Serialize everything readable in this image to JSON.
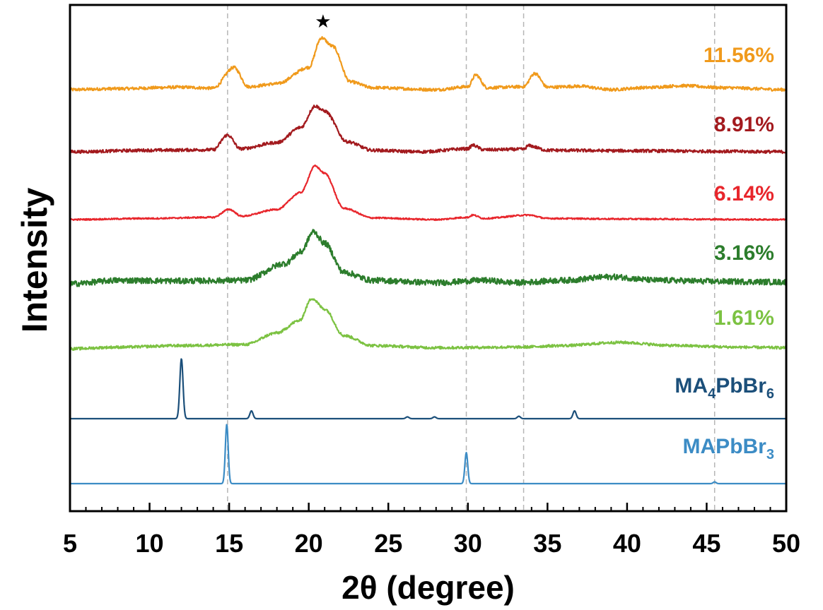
{
  "chart_data": {
    "type": "line",
    "title": "",
    "xlabel": "2θ (degree)",
    "ylabel": "Intensity",
    "xlim": [
      5,
      50
    ],
    "x_ticks": [
      5,
      10,
      15,
      20,
      25,
      30,
      35,
      40,
      45,
      50
    ],
    "y_ticks_shown": false,
    "grid": false,
    "reference_lines_x": [
      14.9,
      29.9,
      33.5,
      45.5
    ],
    "star_marker": {
      "x": 20.9,
      "symbol": "★"
    },
    "series": [
      {
        "name": "11.56%",
        "color": "#F09A1C",
        "baseline": 1.0,
        "noise": 0.6,
        "points": [
          [
            5,
            0
          ],
          [
            8,
            0.2
          ],
          [
            12,
            0.5
          ],
          [
            14,
            0.3
          ],
          [
            15.3,
            4.5
          ],
          [
            16.2,
            0.6
          ],
          [
            18,
            1.2
          ],
          [
            20,
            4.5
          ],
          [
            20.8,
            10.5
          ],
          [
            21.5,
            8.8
          ],
          [
            22.6,
            1.6
          ],
          [
            24,
            0.4
          ],
          [
            28,
            0
          ],
          [
            30,
            0.6
          ],
          [
            30.5,
            3.0
          ],
          [
            31.2,
            0.4
          ],
          [
            33.5,
            0.6
          ],
          [
            34.2,
            3.3
          ],
          [
            35,
            0.5
          ],
          [
            37,
            0.7
          ],
          [
            39,
            0
          ],
          [
            41,
            0.4
          ],
          [
            43.5,
            0.8
          ],
          [
            46,
            0.4
          ],
          [
            50,
            0
          ]
        ]
      },
      {
        "name": "8.91%",
        "color": "#A31A1E",
        "baseline": 2.0,
        "noise": 0.6,
        "points": [
          [
            5,
            0
          ],
          [
            10,
            0.3
          ],
          [
            14,
            0.4
          ],
          [
            14.9,
            3.3
          ],
          [
            15.7,
            0.6
          ],
          [
            18,
            1.8
          ],
          [
            19.5,
            4.8
          ],
          [
            20.4,
            9.0
          ],
          [
            21,
            8.0
          ],
          [
            22.4,
            2.0
          ],
          [
            24,
            0.3
          ],
          [
            27,
            0
          ],
          [
            30,
            0.6
          ],
          [
            30.3,
            1.3
          ],
          [
            31,
            0.4
          ],
          [
            33.5,
            0.5
          ],
          [
            33.8,
            1.2
          ],
          [
            35,
            0.3
          ],
          [
            40,
            0.2
          ],
          [
            45,
            0.1
          ],
          [
            50,
            0
          ]
        ]
      },
      {
        "name": "6.14%",
        "color": "#E8262C",
        "baseline": 3.0,
        "noise": 0.25,
        "points": [
          [
            5,
            0
          ],
          [
            10,
            0.2
          ],
          [
            14,
            0.4
          ],
          [
            15,
            1.8
          ],
          [
            15.8,
            0.6
          ],
          [
            18,
            1.8
          ],
          [
            19.5,
            4.8
          ],
          [
            20.4,
            9.5
          ],
          [
            21,
            8.2
          ],
          [
            22.2,
            2.0
          ],
          [
            24,
            0.3
          ],
          [
            28,
            0
          ],
          [
            30,
            0.4
          ],
          [
            30.3,
            0.8
          ],
          [
            31,
            0.2
          ],
          [
            33.8,
            0.8
          ],
          [
            35,
            0.2
          ],
          [
            40,
            0.1
          ],
          [
            50,
            0
          ]
        ]
      },
      {
        "name": "3.16%",
        "color": "#2C7D2C",
        "baseline": 4.0,
        "noise": 1.0,
        "points": [
          [
            5,
            0
          ],
          [
            8,
            0.6
          ],
          [
            12,
            0.5
          ],
          [
            16,
            0.6
          ],
          [
            18.5,
            3.5
          ],
          [
            19.5,
            5.5
          ],
          [
            20.3,
            9.0
          ],
          [
            21,
            7.0
          ],
          [
            22.2,
            2.0
          ],
          [
            24,
            0.6
          ],
          [
            28,
            0.2
          ],
          [
            31,
            0.6
          ],
          [
            33,
            0.2
          ],
          [
            36,
            0.6
          ],
          [
            39,
            1.2
          ],
          [
            42,
            0.6
          ],
          [
            46,
            0.4
          ],
          [
            50,
            0.3
          ]
        ]
      },
      {
        "name": "1.61%",
        "color": "#7CC242",
        "baseline": 5.0,
        "noise": 0.5,
        "points": [
          [
            5,
            0
          ],
          [
            8,
            0.3
          ],
          [
            12,
            0.6
          ],
          [
            16,
            0.8
          ],
          [
            18,
            3.0
          ],
          [
            19.4,
            5.3
          ],
          [
            20.2,
            9.5
          ],
          [
            21,
            7.5
          ],
          [
            22.2,
            2.5
          ],
          [
            24,
            0.6
          ],
          [
            28,
            0.2
          ],
          [
            33,
            0.3
          ],
          [
            36,
            0.6
          ],
          [
            39.5,
            1.2
          ],
          [
            43,
            0.6
          ],
          [
            47,
            0.3
          ],
          [
            50,
            0.2
          ]
        ]
      },
      {
        "name_parts": [
          {
            "text": "MA",
            "sub": false
          },
          {
            "text": "4",
            "sub": true
          },
          {
            "text": "PbBr",
            "sub": false
          },
          {
            "text": "6",
            "sub": true
          }
        ],
        "color": "#1B4F7A",
        "baseline": 6.0,
        "noise": 0,
        "peaks": [
          [
            12.0,
            10.0
          ],
          [
            16.4,
            1.3
          ],
          [
            26.2,
            0.3
          ],
          [
            27.9,
            0.3
          ],
          [
            33.2,
            0.4
          ],
          [
            36.7,
            1.3
          ]
        ],
        "peak_width": 0.1
      },
      {
        "name_parts": [
          {
            "text": "MAPbBr",
            "sub": false
          },
          {
            "text": "3",
            "sub": true
          }
        ],
        "color": "#3C8CC5",
        "baseline": 7.0,
        "noise": 0,
        "peaks": [
          [
            14.85,
            10.5
          ],
          [
            29.9,
            5.5
          ],
          [
            45.5,
            0.3
          ]
        ],
        "peak_width": 0.09
      }
    ]
  }
}
